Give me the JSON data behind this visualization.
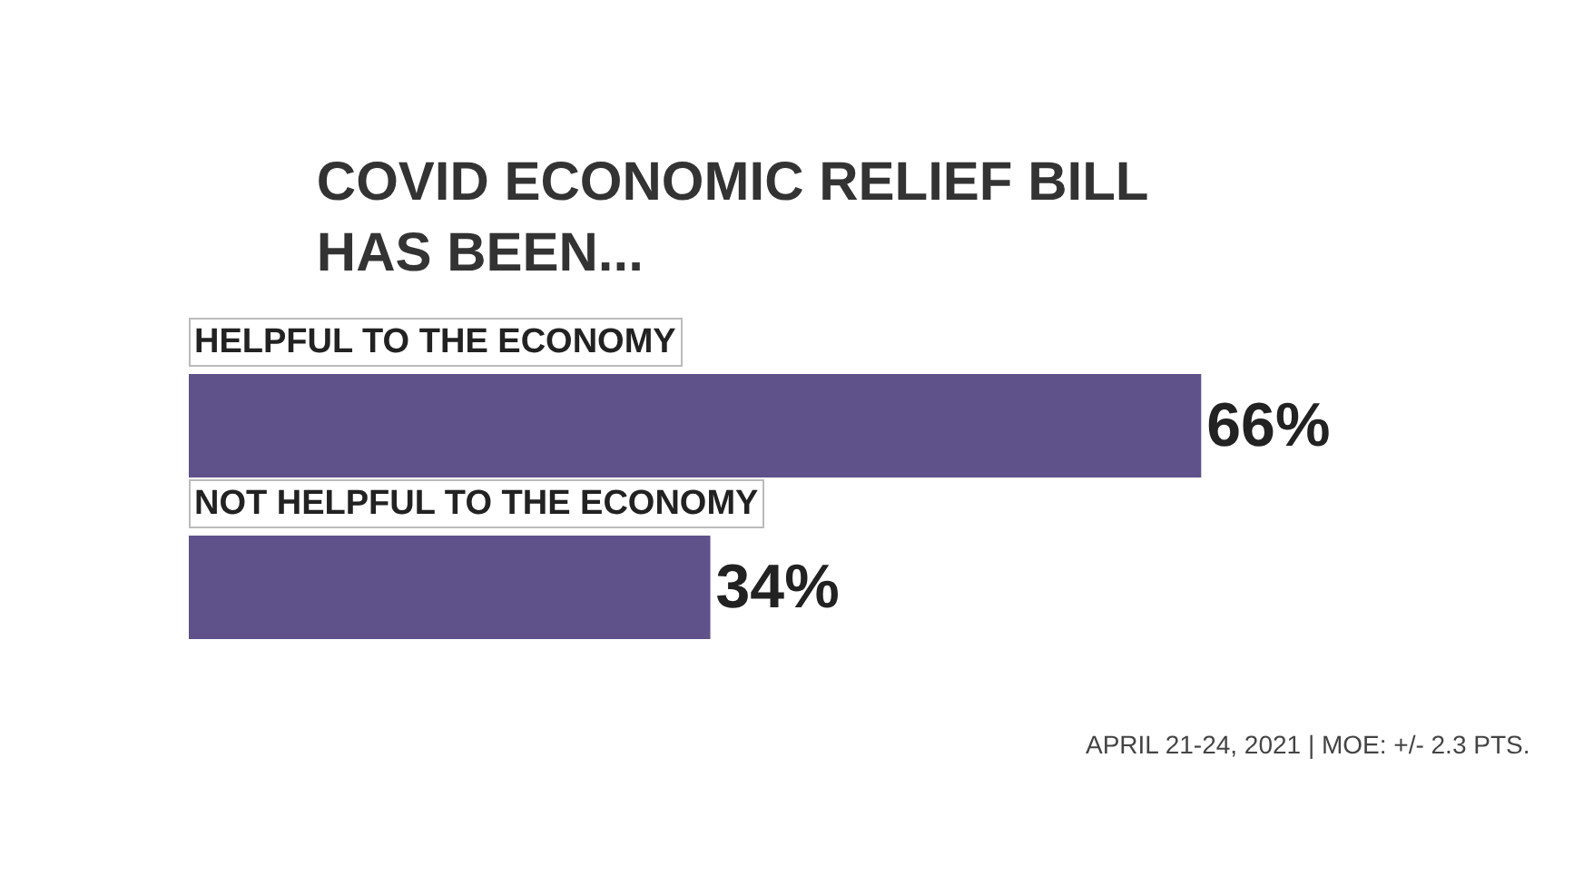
{
  "chart_data": {
    "type": "bar",
    "orientation": "horizontal",
    "title": "COVID ECONOMIC RELIEF BILL\nHAS BEEN...",
    "categories": [
      "HELPFUL TO THE ECONOMY",
      "NOT HELPFUL TO THE ECONOMY"
    ],
    "values": [
      66,
      34
    ],
    "color": "#5f528a",
    "value_labels": [
      "66%",
      "34%"
    ],
    "annotations": [
      "APRIL 21-24, 2021 | MOE: +/- 2.3 PTS."
    ],
    "grid": false,
    "legend": false
  }
}
